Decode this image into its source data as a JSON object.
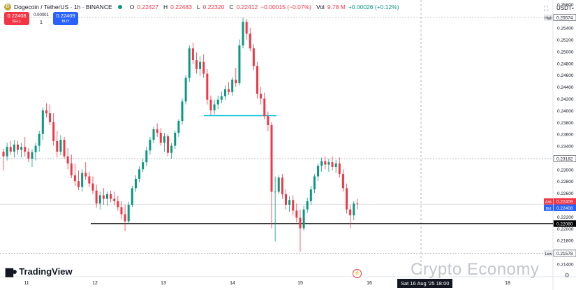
{
  "header": {
    "symbol": "Dogecoin / TetherUS · 1h · BINANCE",
    "ohlc": {
      "o_label": "O",
      "o": "0.22427",
      "h_label": "H",
      "h": "0.22483",
      "l_label": "L",
      "l": "0.22320",
      "c_label": "C",
      "c": "0.22412",
      "change": "−0.00015 (−0.07%)"
    },
    "vol_label": "Vol",
    "vol": "9.78 M",
    "vol_change": "+0.00026 (+0.12%)"
  },
  "trade": {
    "sell_price": "0.22408",
    "sell_label": "SELL",
    "spread": "0.00001",
    "qty": "1",
    "buy_price": "0.22409",
    "buy_label": "BUY"
  },
  "currency": "USDT",
  "brand": "TradingView",
  "watermark": "Crypto Economy",
  "time_badge": "Sat 16 Aug '25   18:00",
  "colors": {
    "up": "#089981",
    "down": "#f23645",
    "support": "#000000",
    "resistance": "#00bcd4"
  },
  "chart_data": {
    "type": "candlestick",
    "x_ticks": [
      "11",
      "12",
      "13",
      "14",
      "15",
      "16",
      "18"
    ],
    "y_ticks": [
      "0.25800",
      "0.25600",
      "0.25400",
      "0.25200",
      "0.25000",
      "0.24800",
      "0.24600",
      "0.24400",
      "0.24200",
      "0.24000",
      "0.23800",
      "0.23600",
      "0.23400",
      "0.23200",
      "0.23000",
      "0.22800",
      "0.22600",
      "0.22400",
      "0.22200",
      "0.22000",
      "0.21800",
      "0.21600",
      "0.21400",
      "0.21200"
    ],
    "ylim": [
      0.2118,
      0.2587
    ],
    "price_labels": [
      {
        "label": "High",
        "value": "0.25574"
      },
      {
        "label": "",
        "value": "0.23182"
      },
      {
        "label": "Ask",
        "value": "0.22409"
      },
      {
        "label": "Bid",
        "value": "0.22408"
      },
      {
        "label": "",
        "value": "0.22080"
      },
      {
        "label": "Low",
        "value": "0.21578"
      }
    ],
    "horizontal_lines": [
      {
        "value": 0.2208,
        "color": "#000000"
      },
      {
        "value": 0.2391,
        "color": "#00bcd4"
      }
    ],
    "candles": [
      [
        0.233,
        0.2335,
        0.2298,
        0.2322
      ],
      [
        0.2322,
        0.2345,
        0.2315,
        0.2338
      ],
      [
        0.2338,
        0.2348,
        0.2325,
        0.233
      ],
      [
        0.233,
        0.235,
        0.232,
        0.2342
      ],
      [
        0.2342,
        0.2348,
        0.2325,
        0.2333
      ],
      [
        0.2333,
        0.2345,
        0.232,
        0.2338
      ],
      [
        0.2338,
        0.2355,
        0.2322,
        0.233
      ],
      [
        0.233,
        0.2336,
        0.2312,
        0.2318
      ],
      [
        0.2318,
        0.2334,
        0.2304,
        0.2329
      ],
      [
        0.2329,
        0.2345,
        0.2315,
        0.234
      ],
      [
        0.234,
        0.2365,
        0.233,
        0.236
      ],
      [
        0.236,
        0.2405,
        0.235,
        0.24
      ],
      [
        0.24,
        0.2412,
        0.2388,
        0.2395
      ],
      [
        0.2395,
        0.241,
        0.2375,
        0.238
      ],
      [
        0.238,
        0.2395,
        0.234,
        0.2348
      ],
      [
        0.2348,
        0.2365,
        0.232,
        0.233
      ],
      [
        0.233,
        0.2358,
        0.2324,
        0.235
      ],
      [
        0.235,
        0.2355,
        0.2318,
        0.2322
      ],
      [
        0.2322,
        0.2336,
        0.23,
        0.231
      ],
      [
        0.231,
        0.2325,
        0.2285,
        0.229
      ],
      [
        0.229,
        0.231,
        0.2272,
        0.228
      ],
      [
        0.228,
        0.2298,
        0.2265,
        0.227
      ],
      [
        0.227,
        0.23,
        0.2262,
        0.2294
      ],
      [
        0.2294,
        0.2312,
        0.2282,
        0.2288
      ],
      [
        0.2288,
        0.2296,
        0.227,
        0.2276
      ],
      [
        0.2276,
        0.2288,
        0.2258,
        0.2264
      ],
      [
        0.2264,
        0.2274,
        0.2235,
        0.2242
      ],
      [
        0.2242,
        0.2262,
        0.2232,
        0.2256
      ],
      [
        0.2256,
        0.2268,
        0.224,
        0.225
      ],
      [
        0.225,
        0.2262,
        0.2238,
        0.2258
      ],
      [
        0.2258,
        0.2264,
        0.2244,
        0.225
      ],
      [
        0.225,
        0.2262,
        0.224,
        0.2246
      ],
      [
        0.2246,
        0.2255,
        0.223,
        0.2236
      ],
      [
        0.2236,
        0.2246,
        0.2215,
        0.2224
      ],
      [
        0.2224,
        0.224,
        0.2195,
        0.2212
      ],
      [
        0.2212,
        0.2245,
        0.2208,
        0.224
      ],
      [
        0.224,
        0.2272,
        0.2236,
        0.2268
      ],
      [
        0.2268,
        0.229,
        0.2262,
        0.2284
      ],
      [
        0.2284,
        0.2305,
        0.2278,
        0.23
      ],
      [
        0.23,
        0.2318,
        0.2295,
        0.2312
      ],
      [
        0.2312,
        0.2338,
        0.2306,
        0.2332
      ],
      [
        0.2332,
        0.2355,
        0.2325,
        0.235
      ],
      [
        0.235,
        0.2372,
        0.2344,
        0.2368
      ],
      [
        0.2368,
        0.2378,
        0.2355,
        0.2362
      ],
      [
        0.2362,
        0.237,
        0.234,
        0.2345
      ],
      [
        0.2345,
        0.2362,
        0.233,
        0.2356
      ],
      [
        0.2356,
        0.236,
        0.2322,
        0.2328
      ],
      [
        0.2328,
        0.2345,
        0.2318,
        0.234
      ],
      [
        0.234,
        0.2366,
        0.2334,
        0.2362
      ],
      [
        0.2362,
        0.2385,
        0.2355,
        0.2382
      ],
      [
        0.2382,
        0.242,
        0.2376,
        0.2415
      ],
      [
        0.2415,
        0.246,
        0.241,
        0.2455
      ],
      [
        0.2455,
        0.251,
        0.2448,
        0.2505
      ],
      [
        0.2505,
        0.2515,
        0.2478,
        0.2485
      ],
      [
        0.2485,
        0.2498,
        0.2462,
        0.247
      ],
      [
        0.247,
        0.2492,
        0.2458,
        0.2482
      ],
      [
        0.2482,
        0.2495,
        0.2455,
        0.2462
      ],
      [
        0.2462,
        0.247,
        0.241,
        0.2418
      ],
      [
        0.2418,
        0.2425,
        0.2392,
        0.24
      ],
      [
        0.24,
        0.2418,
        0.2393,
        0.241
      ],
      [
        0.241,
        0.2425,
        0.2402,
        0.2418
      ],
      [
        0.2418,
        0.2432,
        0.2412,
        0.2424
      ],
      [
        0.2424,
        0.2442,
        0.2418,
        0.2436
      ],
      [
        0.2436,
        0.2448,
        0.2426,
        0.2431
      ],
      [
        0.2431,
        0.2456,
        0.2425,
        0.2452
      ],
      [
        0.2452,
        0.2472,
        0.244,
        0.2446
      ],
      [
        0.2446,
        0.252,
        0.2442,
        0.251
      ],
      [
        0.251,
        0.2557,
        0.2505,
        0.255
      ],
      [
        0.255,
        0.2555,
        0.252,
        0.253
      ],
      [
        0.253,
        0.254,
        0.25,
        0.2505
      ],
      [
        0.2505,
        0.2512,
        0.2468,
        0.2475
      ],
      [
        0.2475,
        0.2482,
        0.242,
        0.2428
      ],
      [
        0.2428,
        0.244,
        0.241,
        0.242
      ],
      [
        0.242,
        0.243,
        0.2385,
        0.239
      ],
      [
        0.239,
        0.2398,
        0.2365,
        0.2375
      ],
      [
        0.2375,
        0.238,
        0.22,
        0.2262
      ],
      [
        0.2262,
        0.2288,
        0.2178,
        0.2262
      ],
      [
        0.2262,
        0.229,
        0.2258,
        0.2286
      ],
      [
        0.2286,
        0.2292,
        0.225,
        0.2258
      ],
      [
        0.2258,
        0.2266,
        0.2232,
        0.224
      ],
      [
        0.224,
        0.2254,
        0.2228,
        0.2248
      ],
      [
        0.2248,
        0.2256,
        0.2222,
        0.223
      ],
      [
        0.223,
        0.2242,
        0.221,
        0.2218
      ],
      [
        0.2218,
        0.2232,
        0.216,
        0.22
      ],
      [
        0.22,
        0.2238,
        0.2196,
        0.2232
      ],
      [
        0.2232,
        0.2252,
        0.2226,
        0.2246
      ],
      [
        0.2246,
        0.2272,
        0.224,
        0.2266
      ],
      [
        0.2266,
        0.2292,
        0.226,
        0.2288
      ],
      [
        0.2288,
        0.231,
        0.228,
        0.2306
      ],
      [
        0.2306,
        0.232,
        0.2296,
        0.2314
      ],
      [
        0.2314,
        0.2322,
        0.23,
        0.2308
      ],
      [
        0.2308,
        0.2318,
        0.2296,
        0.2312
      ],
      [
        0.2312,
        0.2322,
        0.2298,
        0.2304
      ],
      [
        0.2304,
        0.2316,
        0.2294,
        0.231
      ],
      [
        0.231,
        0.232,
        0.2286,
        0.2292
      ],
      [
        0.2292,
        0.23,
        0.2262,
        0.2268
      ],
      [
        0.2268,
        0.2276,
        0.2225,
        0.2232
      ],
      [
        0.2232,
        0.224,
        0.22,
        0.2222
      ],
      [
        0.2222,
        0.2246,
        0.2214,
        0.2242
      ],
      [
        0.2242,
        0.225,
        0.2232,
        0.2241
      ]
    ]
  }
}
